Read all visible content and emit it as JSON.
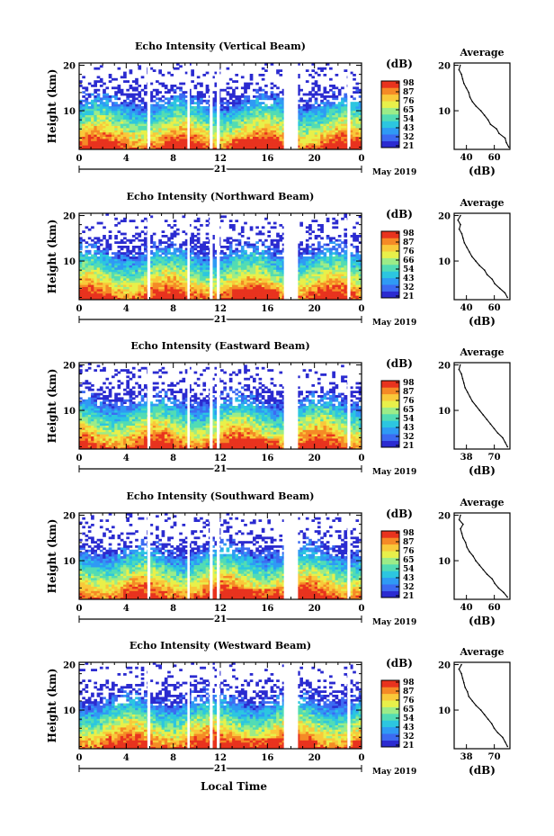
{
  "figure": {
    "xlabel_bottom": "Local Time",
    "date_label": "May 2019",
    "day_label": "21",
    "avg_title": "Average",
    "avg_xlabel": "(dB)",
    "cb_unit": "(dB)"
  },
  "chart_data": [
    {
      "type": "heatmap",
      "title": "Echo Intensity (Vertical Beam)",
      "ylabel": "Height (km)",
      "xlim": [
        0,
        24
      ],
      "ylim": [
        1.5,
        20.5
      ],
      "xticks": [
        "0",
        "4",
        "8",
        "12",
        "16",
        "20",
        "0"
      ],
      "yticks": [
        "10",
        "20"
      ],
      "colorbar_ticks": [
        "98",
        "87",
        "76",
        "65",
        "54",
        "43",
        "32",
        "21"
      ],
      "gaps_hours": [
        5.8,
        9.2,
        11.1,
        11.7,
        17.4,
        18.6,
        22.8
      ],
      "average": {
        "xlim": [
          30,
          76
        ],
        "xticks": [
          "40",
          "60"
        ],
        "yticks": [
          "10",
          "20"
        ],
        "heights": [
          2,
          3,
          4,
          5,
          6,
          7,
          8,
          9,
          10,
          11,
          12,
          13,
          14,
          15,
          16,
          17,
          18,
          19,
          20
        ],
        "values": [
          75,
          73,
          72,
          67,
          65,
          60,
          58,
          55,
          52,
          48,
          45,
          43,
          42,
          40,
          38,
          37,
          36,
          34,
          35
        ]
      }
    },
    {
      "type": "heatmap",
      "title": "Echo Intensity (Northward Beam)",
      "ylabel": "Height (km)",
      "xlim": [
        0,
        24
      ],
      "ylim": [
        1.5,
        20.5
      ],
      "xticks": [
        "0",
        "4",
        "8",
        "12",
        "16",
        "20",
        "0"
      ],
      "yticks": [
        "10",
        "20"
      ],
      "colorbar_ticks": [
        "98",
        "87",
        "76",
        "66",
        "54",
        "43",
        "32",
        "21"
      ],
      "gaps_hours": [
        5.8,
        9.2,
        11.1,
        11.7,
        17.4,
        18.6,
        22.8
      ],
      "average": {
        "xlim": [
          30,
          74
        ],
        "xticks": [
          "40",
          "60"
        ],
        "yticks": [
          "10",
          "20"
        ],
        "heights": [
          2,
          3,
          4,
          5,
          6,
          7,
          8,
          9,
          10,
          11,
          12,
          13,
          14,
          15,
          16,
          17,
          18,
          19,
          20
        ],
        "values": [
          72,
          70,
          66,
          62,
          60,
          56,
          54,
          50,
          47,
          44,
          42,
          40,
          38,
          37,
          36,
          34,
          35,
          33,
          35
        ]
      }
    },
    {
      "type": "heatmap",
      "title": "Echo Intensity (Eastward Beam)",
      "ylabel": "Height (km)",
      "xlim": [
        0,
        24
      ],
      "ylim": [
        1.5,
        20.5
      ],
      "xticks": [
        "0",
        "4",
        "8",
        "12",
        "16",
        "20",
        "0"
      ],
      "yticks": [
        "10",
        "20"
      ],
      "colorbar_ticks": [
        "98",
        "87",
        "76",
        "65",
        "54",
        "43",
        "32",
        "21"
      ],
      "gaps_hours": [
        5.8,
        9.2,
        11.1,
        11.7,
        17.4,
        18.6,
        22.8
      ],
      "average": {
        "xlim": [
          30,
          76
        ],
        "xticks": [
          "38",
          "70"
        ],
        "yticks": [
          "10",
          "20"
        ],
        "heights": [
          2,
          3,
          4,
          5,
          6,
          7,
          8,
          9,
          10,
          11,
          12,
          13,
          14,
          15,
          16,
          17,
          18,
          19,
          20
        ],
        "values": [
          74,
          72,
          70,
          66,
          63,
          60,
          57,
          54,
          51,
          48,
          45,
          43,
          41,
          39,
          38,
          37,
          36,
          34,
          35
        ]
      }
    },
    {
      "type": "heatmap",
      "title": "Echo Intensity (Southward Beam)",
      "ylabel": "Height (km)",
      "xlim": [
        0,
        24
      ],
      "ylim": [
        1.5,
        20.5
      ],
      "xticks": [
        "0",
        "4",
        "8",
        "12",
        "16",
        "20",
        "0"
      ],
      "yticks": [
        "10",
        "20"
      ],
      "colorbar_ticks": [
        "98",
        "87",
        "76",
        "65",
        "54",
        "43",
        "32",
        "21"
      ],
      "gaps_hours": [
        5.8,
        9.2,
        11.1,
        11.7,
        17.4,
        18.6,
        22.8
      ],
      "average": {
        "xlim": [
          30,
          74
        ],
        "xticks": [
          "40",
          "60"
        ],
        "yticks": [
          "10",
          "20"
        ],
        "heights": [
          2,
          3,
          4,
          5,
          6,
          7,
          8,
          9,
          10,
          11,
          12,
          13,
          14,
          15,
          16,
          17,
          18,
          19,
          20
        ],
        "values": [
          72,
          69,
          65,
          62,
          60,
          56,
          53,
          50,
          47,
          45,
          42,
          40,
          39,
          37,
          36,
          35,
          37,
          34,
          35
        ]
      }
    },
    {
      "type": "heatmap",
      "title": "Echo Intensity (Westward Beam)",
      "ylabel": "Height (km)",
      "xlim": [
        0,
        24
      ],
      "ylim": [
        1.5,
        20.5
      ],
      "xticks": [
        "0",
        "4",
        "8",
        "12",
        "16",
        "20",
        "0"
      ],
      "yticks": [
        "10",
        "20"
      ],
      "colorbar_ticks": [
        "98",
        "87",
        "76",
        "65",
        "54",
        "43",
        "32",
        "21"
      ],
      "gaps_hours": [
        5.8,
        9.2,
        11.1,
        11.7,
        17.4,
        18.6,
        22.8
      ],
      "average": {
        "xlim": [
          30,
          76
        ],
        "xticks": [
          "38",
          "70"
        ],
        "yticks": [
          "10",
          "20"
        ],
        "heights": [
          2,
          3,
          4,
          5,
          6,
          7,
          8,
          9,
          10,
          11,
          12,
          13,
          14,
          15,
          16,
          17,
          18,
          19,
          20
        ],
        "values": [
          74,
          72,
          70,
          66,
          63,
          61,
          58,
          55,
          52,
          48,
          45,
          42,
          41,
          39,
          38,
          37,
          36,
          34,
          36
        ]
      }
    }
  ],
  "colors": {
    "colormap": [
      "#2b2bd0",
      "#3c6bf2",
      "#2f9af4",
      "#2cc6e0",
      "#52dcb4",
      "#9cec88",
      "#e8f04a",
      "#f9c93a",
      "#f58a26",
      "#e8331e"
    ],
    "gap": "#ffffff",
    "axis": "#000000"
  }
}
